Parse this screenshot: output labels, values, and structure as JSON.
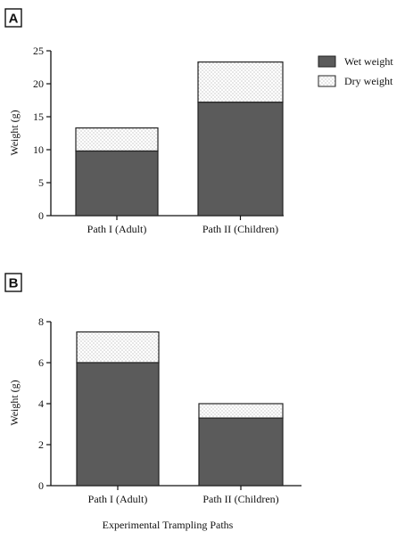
{
  "figure": {
    "xlabel": "Experimental Trampling Paths"
  },
  "legend": {
    "entries": [
      "Wet weight",
      "Dry weight"
    ],
    "colors": {
      "wet": "#5b5b5b",
      "dry_dot": "#8a8a8a",
      "dry_bg": "#ffffff"
    },
    "placement": "top-right"
  },
  "chart_data": [
    {
      "panel": "A",
      "type": "bar",
      "stacked": true,
      "categories": [
        "Path I (Adult)",
        "Path II (Children)"
      ],
      "series": [
        {
          "name": "Wet weight",
          "values": [
            9.8,
            17.2
          ]
        },
        {
          "name": "Dry weight",
          "values": [
            3.5,
            6.1
          ]
        }
      ],
      "ylabel": "Weight (g)",
      "ylim": [
        0,
        25
      ],
      "yticks": [
        0,
        5,
        10,
        15,
        20,
        25
      ],
      "grid": false
    },
    {
      "panel": "B",
      "type": "bar",
      "stacked": true,
      "categories": [
        "Path I (Adult)",
        "Path II (Children)"
      ],
      "series": [
        {
          "name": "Wet weight",
          "values": [
            6.0,
            3.3
          ]
        },
        {
          "name": "Dry weight",
          "values": [
            1.5,
            0.7
          ]
        }
      ],
      "ylabel": "Weight (g)",
      "ylim": [
        0,
        8
      ],
      "yticks": [
        0,
        2,
        4,
        6,
        8
      ],
      "grid": false
    }
  ]
}
